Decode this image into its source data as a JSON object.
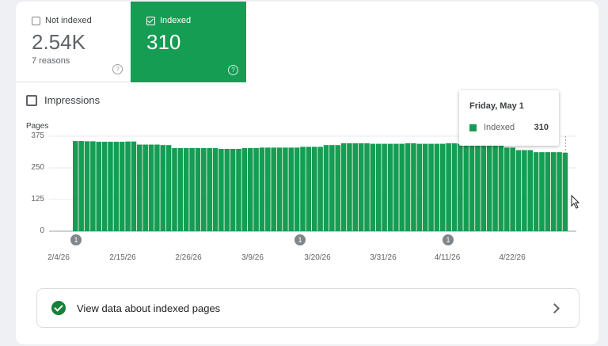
{
  "tiles": {
    "not_indexed": {
      "label": "Not indexed",
      "value": "2.54K",
      "sub": "7 reasons",
      "checked": false
    },
    "indexed": {
      "label": "Indexed",
      "value": "310",
      "checked": true
    }
  },
  "impressions_label": "Impressions",
  "tooltip": {
    "date": "Friday, May 1",
    "series": "Indexed",
    "value": "310"
  },
  "link": {
    "label": "View data about indexed pages"
  },
  "colors": {
    "indexed": "#159d53",
    "link_check": "#188038"
  },
  "chart_data": {
    "type": "bar",
    "ylabel": "Pages",
    "ylim": [
      0,
      375
    ],
    "yticks": [
      "375",
      "250",
      "125",
      "0"
    ],
    "xticks": [
      "2/4/26",
      "2/15/26",
      "2/26/26",
      "3/9/26",
      "3/20/26",
      "3/31/26",
      "4/11/26",
      "4/22/26"
    ],
    "series": [
      {
        "name": "Indexed",
        "values": [
          356,
          356,
          355,
          355,
          353,
          353,
          353,
          353,
          353,
          354,
          354,
          342,
          342,
          342,
          342,
          340,
          340,
          328,
          328,
          328,
          328,
          328,
          328,
          328,
          328,
          325,
          325,
          325,
          325,
          328,
          328,
          328,
          330,
          330,
          330,
          330,
          330,
          330,
          330,
          333,
          333,
          333,
          333,
          340,
          340,
          340,
          347,
          347,
          347,
          347,
          347,
          345,
          345,
          345,
          345,
          345,
          345,
          347,
          347,
          345,
          345,
          345,
          345,
          345,
          347,
          347,
          345,
          345,
          345,
          342,
          342,
          338,
          338,
          338,
          330,
          330,
          320,
          320,
          320,
          312,
          312,
          312,
          312,
          312,
          310
        ]
      }
    ],
    "annotations": [
      "1",
      "1",
      "1"
    ]
  }
}
